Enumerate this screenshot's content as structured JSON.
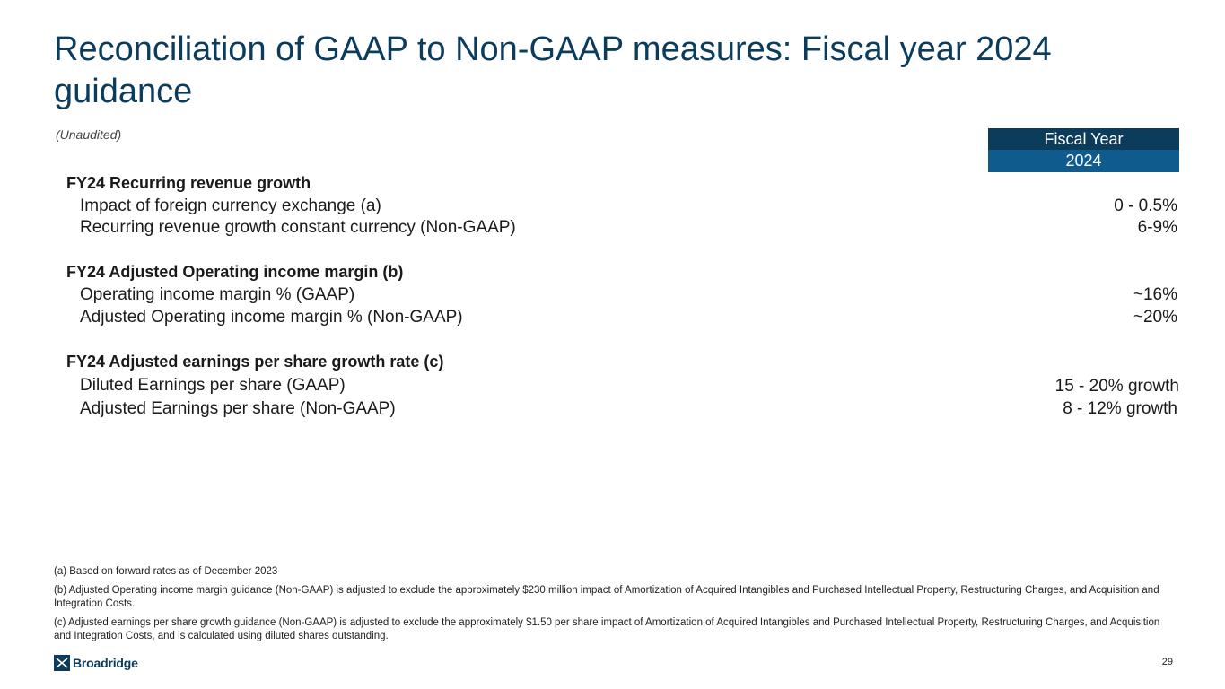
{
  "title": "Reconciliation of GAAP to Non-GAAP measures: Fiscal year 2024 guidance",
  "subtitle": "(Unaudited)",
  "header": {
    "line1": "Fiscal Year",
    "line2": "2024"
  },
  "sections": [
    {
      "title": "FY24 Recurring revenue growth",
      "rows": [
        {
          "label": "Impact of foreign currency exchange (a)",
          "value": "0 - 0.5%"
        },
        {
          "label": "Recurring revenue growth constant currency (Non-GAAP)",
          "value": "6-9%"
        }
      ]
    },
    {
      "title": "FY24 Adjusted Operating income margin (b)",
      "rows": [
        {
          "label": "Operating income margin % (GAAP)",
          "value": "~16%"
        },
        {
          "label": "Adjusted Operating income margin % (Non-GAAP)",
          "value": "~20%"
        }
      ]
    },
    {
      "title": "FY24 Adjusted earnings per share growth rate (c)",
      "rows": [
        {
          "label": "Diluted Earnings per share (GAAP)",
          "value": "15 - 20% growth"
        },
        {
          "label": "Adjusted Earnings per share (Non-GAAP)",
          "value": "8 - 12% growth"
        }
      ]
    }
  ],
  "notes": [
    "(a) Based on forward rates as of December 2023",
    "(b) Adjusted Operating income margin guidance (Non-GAAP) is adjusted to exclude the approximately $230 million impact of Amortization of Acquired Intangibles and Purchased Intellectual Property, Restructuring Charges, and Acquisition and Integration Costs.",
    "(c) Adjusted earnings per share growth guidance (Non-GAAP) is adjusted to exclude the approximately $1.50 per share impact of Amortization of Acquired Intangibles and Purchased Intellectual Property, Restructuring Charges, and Acquisition and Integration Costs, and is calculated using diluted shares outstanding."
  ],
  "footer": {
    "logo_text": "Broadridge",
    "page_number": "29"
  },
  "colors": {
    "navy": "#0c3c5c",
    "blue": "#0f5b8d"
  },
  "icons": {
    "logo": "broadridge-logo-icon"
  }
}
